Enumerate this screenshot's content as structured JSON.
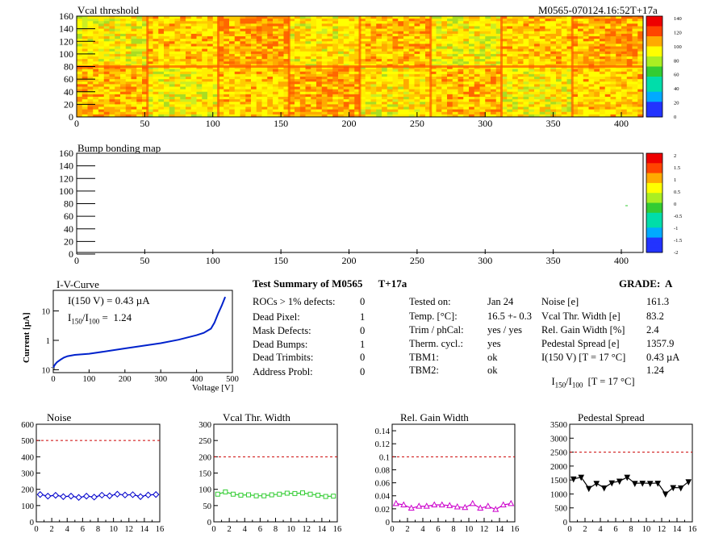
{
  "module_id": "M0565-070124.16:52T+17a",
  "vcal_map": {
    "title": "Vcal threshold",
    "x_ticks": [
      "0",
      "50",
      "100",
      "150",
      "200",
      "250",
      "300",
      "350",
      "400"
    ],
    "y_ticks": [
      "0",
      "20",
      "40",
      "60",
      "80",
      "100",
      "120",
      "140",
      "160"
    ],
    "palette_ticks": [
      "140",
      "120",
      "100",
      "80",
      "60",
      "40",
      "20",
      "0"
    ]
  },
  "bump_map": {
    "title": "Bump bonding map",
    "x_ticks": [
      "0",
      "50",
      "100",
      "150",
      "200",
      "250",
      "300",
      "350",
      "400"
    ],
    "y_ticks": [
      "0",
      "20",
      "40",
      "60",
      "80",
      "100",
      "120",
      "140",
      "160"
    ],
    "palette_ticks": [
      "2",
      "1.5",
      "1",
      "0.5",
      "0",
      "-0.5",
      "-1",
      "-1.5",
      "-2"
    ]
  },
  "iv_curve": {
    "title": "I-V-Curve",
    "annotation_i150": "I(150 V) = 0.43 µA",
    "annotation_ratio_a": "I",
    "annotation_ratio_sub1": "150",
    "annotation_ratio_slash": "/I",
    "annotation_ratio_sub2": "100",
    "annotation_ratio_val": " =  1.24",
    "xlabel": "Voltage [V]",
    "ylabel": "Current [µA]",
    "x_ticks": [
      "0",
      "100",
      "200",
      "300",
      "400",
      "500"
    ],
    "y_ticks": [
      "10",
      "1",
      "10"
    ],
    "y_tick_exp": "-1"
  },
  "summary": {
    "heading": "Test Summary of M0565",
    "heading_tag": "T+17a",
    "grade": "GRADE:  A",
    "col1": [
      {
        "label": "ROCs > 1% defects:",
        "value": "0"
      },
      {
        "label": "Dead Pixel:",
        "value": "1"
      },
      {
        "label": "Mask Defects:",
        "value": "0"
      },
      {
        "label": "Dead Bumps:",
        "value": "1"
      },
      {
        "label": "Dead Trimbits:",
        "value": "0"
      },
      {
        "label": "Address Probl:",
        "value": "0"
      }
    ],
    "col2": [
      {
        "label": "Tested on:",
        "value": "Jan 24"
      },
      {
        "label": "Temp. [°C]:",
        "value": "16.5 +- 0.3"
      },
      {
        "label": "Trim / phCal:",
        "value": "yes / yes"
      },
      {
        "label": "Therm. cycl.:",
        "value": "yes"
      },
      {
        "label": "TBM1:",
        "value": "ok"
      },
      {
        "label": "TBM2:",
        "value": "ok"
      }
    ],
    "col3": [
      {
        "label": "Noise [e]",
        "value": "161.3"
      },
      {
        "label": "Vcal Thr. Width [e]",
        "value": "83.2"
      },
      {
        "label": "Rel. Gain Width [%]",
        "value": "2.4"
      },
      {
        "label": "Pedestal Spread [e]",
        "value": "1357.9"
      },
      {
        "label": "I(150 V) [T = 17 °C]",
        "value": "0.43 µA"
      },
      {
        "label_a": "I",
        "label_sub1": "150",
        "label_slash": "/I",
        "label_sub2": "100",
        "label_rest": "  [T = 17 °C]",
        "value": "1.24"
      }
    ]
  },
  "colors": {
    "noise": "#0000cc",
    "vcal": "#33cc33",
    "gain": "#cc00cc",
    "pedestal": "#000000",
    "limit": "#cc0000",
    "iv": "#0022cc"
  },
  "chart_data": [
    {
      "type": "line",
      "title": "Noise",
      "x": [
        0,
        1,
        2,
        3,
        4,
        5,
        6,
        7,
        8,
        9,
        10,
        11,
        12,
        13,
        14,
        15
      ],
      "values": [
        168,
        158,
        163,
        155,
        158,
        150,
        158,
        152,
        164,
        160,
        170,
        165,
        167,
        155,
        165,
        168
      ],
      "limit": 500,
      "xlim": [
        0,
        16
      ],
      "ylim": [
        0,
        600
      ],
      "x_ticks": [
        "0",
        "2",
        "4",
        "6",
        "8",
        "10",
        "12",
        "14",
        "16"
      ],
      "y_ticks": [
        "0",
        "100",
        "200",
        "300",
        "400",
        "500",
        "600"
      ],
      "marker": "diamond",
      "color": "#0000cc"
    },
    {
      "type": "line",
      "title": "Vcal Thr. Width",
      "x": [
        0,
        1,
        2,
        3,
        4,
        5,
        6,
        7,
        8,
        9,
        10,
        11,
        12,
        13,
        14,
        15
      ],
      "values": [
        85,
        92,
        85,
        82,
        83,
        80,
        80,
        83,
        85,
        88,
        87,
        89,
        85,
        82,
        78,
        79
      ],
      "limit": 200,
      "xlim": [
        0,
        16
      ],
      "ylim": [
        0,
        300
      ],
      "x_ticks": [
        "0",
        "2",
        "4",
        "6",
        "8",
        "10",
        "12",
        "14",
        "16"
      ],
      "y_ticks": [
        "0",
        "50",
        "100",
        "150",
        "200",
        "250",
        "300"
      ],
      "marker": "square",
      "color": "#33cc33"
    },
    {
      "type": "line",
      "title": "Rel. Gain Width",
      "x": [
        0,
        1,
        2,
        3,
        4,
        5,
        6,
        7,
        8,
        9,
        10,
        11,
        12,
        13,
        14,
        15
      ],
      "values": [
        0.028,
        0.026,
        0.021,
        0.024,
        0.024,
        0.026,
        0.026,
        0.025,
        0.023,
        0.022,
        0.028,
        0.021,
        0.024,
        0.019,
        0.026,
        0.028
      ],
      "limit": 0.1,
      "xlim": [
        0,
        16
      ],
      "ylim": [
        0,
        0.15
      ],
      "x_ticks": [
        "0",
        "2",
        "4",
        "6",
        "8",
        "10",
        "12",
        "14",
        "16"
      ],
      "y_ticks": [
        "0",
        "0.02",
        "0.04",
        "0.06",
        "0.08",
        "0.1",
        "0.12",
        "0.14"
      ],
      "marker": "triangle",
      "color": "#cc00cc"
    },
    {
      "type": "line",
      "title": "Pedestal Spread",
      "x": [
        0,
        1,
        2,
        3,
        4,
        5,
        6,
        7,
        8,
        9,
        10,
        11,
        12,
        13,
        14,
        15
      ],
      "values": [
        1540,
        1600,
        1200,
        1380,
        1220,
        1400,
        1460,
        1600,
        1380,
        1390,
        1380,
        1390,
        1000,
        1230,
        1220,
        1440
      ],
      "limit": 2500,
      "xlim": [
        0,
        16
      ],
      "ylim": [
        0,
        3500
      ],
      "x_ticks": [
        "0",
        "2",
        "4",
        "6",
        "8",
        "10",
        "12",
        "14",
        "16"
      ],
      "y_ticks": [
        "0",
        "500",
        "1000",
        "1500",
        "2000",
        "2500",
        "3000",
        "3500"
      ],
      "marker": "triangle-down",
      "color": "#000000"
    },
    {
      "type": "line",
      "title": "I-V-Curve",
      "xlabel": "Voltage [V]",
      "ylabel": "Current [µA]",
      "x": [
        0,
        5,
        10,
        20,
        30,
        40,
        60,
        100,
        150,
        200,
        250,
        300,
        350,
        400,
        420,
        440,
        450,
        460,
        470,
        480
      ],
      "values": [
        0.12,
        0.15,
        0.18,
        0.22,
        0.26,
        0.29,
        0.32,
        0.35,
        0.43,
        0.53,
        0.65,
        0.8,
        1.05,
        1.5,
        1.8,
        2.5,
        4,
        8,
        15,
        30
      ],
      "xlim": [
        0,
        500
      ],
      "ylim": [
        0.08,
        50
      ],
      "yscale": "log"
    }
  ]
}
